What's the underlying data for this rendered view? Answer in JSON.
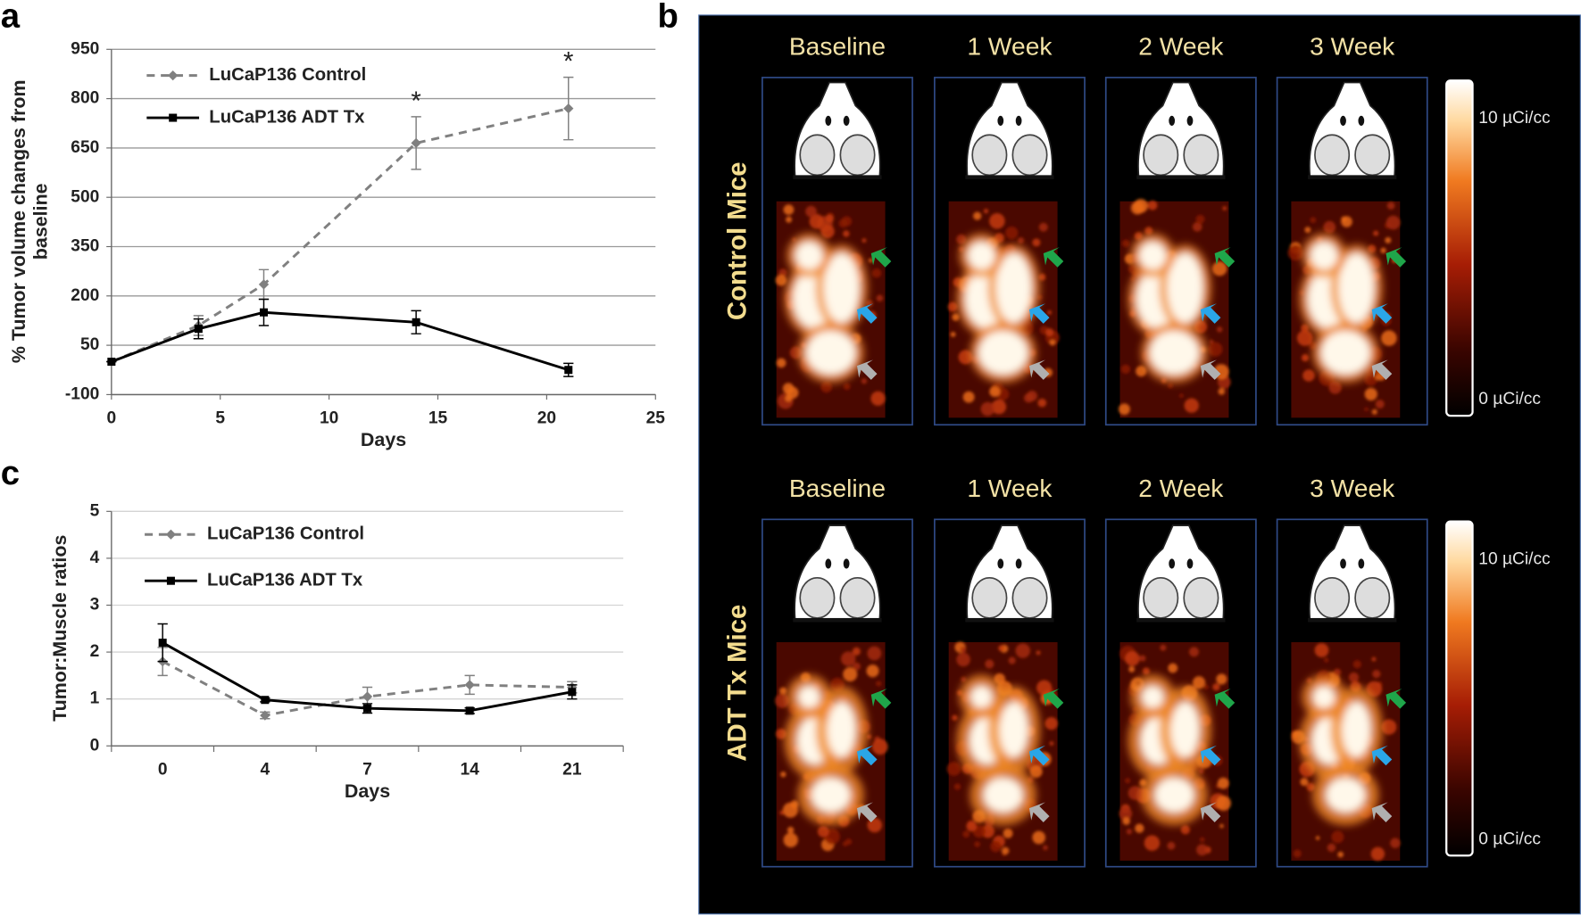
{
  "chart_data": [
    {
      "type": "line",
      "panel": "a",
      "x_label": "Days",
      "y_label": "% Tumor volume changes from baseline",
      "x": [
        0,
        4,
        7,
        14,
        21
      ],
      "series": [
        {
          "name": "LuCaP136 Control",
          "color": "#808080",
          "line_style": "dashed",
          "marker": "diamond",
          "values": [
            0,
            110,
            235,
            665,
            770
          ],
          "errors": [
            0,
            30,
            45,
            80,
            95
          ]
        },
        {
          "name": "LuCaP136 ADT Tx",
          "color": "#000000",
          "line_style": "solid",
          "marker": "square",
          "values": [
            0,
            100,
            150,
            120,
            -25
          ],
          "errors": [
            0,
            30,
            40,
            35,
            20
          ]
        }
      ],
      "annotations": [
        {
          "text": "*",
          "x": 14
        },
        {
          "text": "*",
          "x": 21
        }
      ],
      "xlim": [
        0,
        25
      ],
      "xticks": [
        0,
        5,
        10,
        15,
        20,
        25
      ],
      "ylim": [
        -100,
        950
      ],
      "yticks": [
        -100,
        50,
        200,
        350,
        500,
        650,
        800,
        950
      ],
      "grid": true,
      "legend": "upper left"
    },
    {
      "type": "line",
      "panel": "c",
      "x_label": "Days",
      "y_label": "Tumor:Muscle ratios",
      "categories": [
        "0",
        "4",
        "7",
        "14",
        "21"
      ],
      "series": [
        {
          "name": "LuCaP136 Control",
          "color": "#808080",
          "line_style": "dashed",
          "marker": "diamond",
          "values": [
            1.8,
            0.65,
            1.05,
            1.3,
            1.25
          ],
          "errors": [
            0.3,
            0.07,
            0.2,
            0.2,
            0.12
          ]
        },
        {
          "name": "LuCaP136 ADT Tx",
          "color": "#000000",
          "line_style": "solid",
          "marker": "square",
          "values": [
            2.2,
            0.98,
            0.8,
            0.75,
            1.15
          ],
          "errors": [
            0.4,
            0.04,
            0.1,
            0.06,
            0.15
          ]
        }
      ],
      "ylim": [
        0,
        5
      ],
      "yticks": [
        0,
        1,
        2,
        3,
        4,
        5
      ],
      "grid": true,
      "legend": "upper left"
    }
  ],
  "panel_b": {
    "panel": "b",
    "rows": [
      {
        "label": "Control Mice",
        "columns": [
          "Baseline",
          "1 Week",
          "2 Week",
          "3 Week"
        ],
        "scale_max": "10 µCi/cc",
        "scale_min": "0 µCi/cc"
      },
      {
        "label": "ADT  Tx  Mice",
        "columns": [
          "Baseline",
          "1 Week",
          "2 Week",
          "3 Week"
        ],
        "scale_max": "10 µCi/cc",
        "scale_min": "0 µCi/cc"
      }
    ]
  }
}
